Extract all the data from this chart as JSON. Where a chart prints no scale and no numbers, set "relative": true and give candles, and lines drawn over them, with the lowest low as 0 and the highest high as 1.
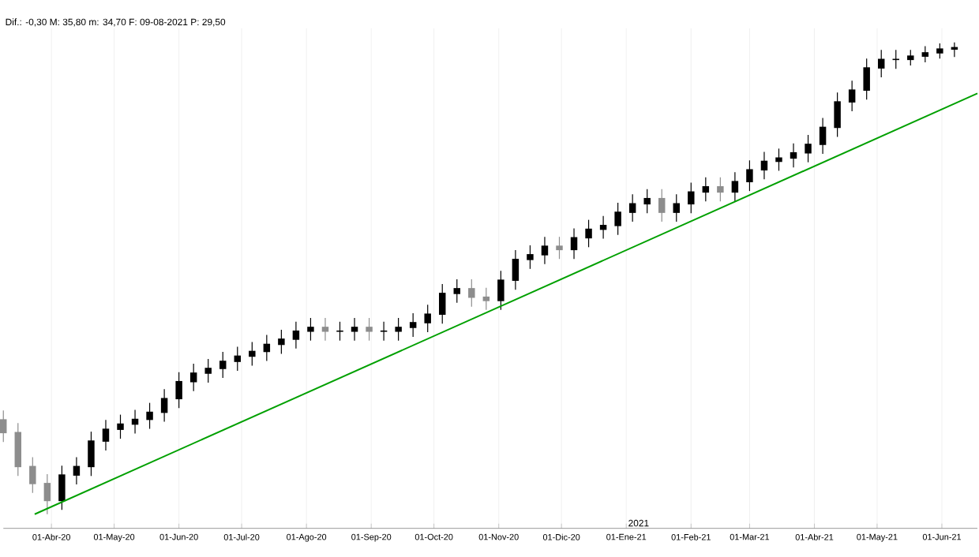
{
  "chart_data": {
    "type": "candlestick",
    "relative": true,
    "annotations": [
      "Dif.: -0,30 M: 35,80 m: 34,70 F: 09-08-2021 P: 29,50",
      "2021"
    ],
    "xlim": [
      "2020-03-09",
      "2021-06-18"
    ],
    "xticks": [
      {
        "value": "2020-04-01",
        "label": "01-Abr-20"
      },
      {
        "value": "2020-05-01",
        "label": "01-May-20"
      },
      {
        "value": "2020-06-01",
        "label": "01-Jun-20"
      },
      {
        "value": "2020-07-01",
        "label": "01-Jul-20"
      },
      {
        "value": "2020-08-01",
        "label": "01-Ago-20"
      },
      {
        "value": "2020-09-01",
        "label": "01-Sep-20"
      },
      {
        "value": "2020-10-01",
        "label": "01-Oct-20"
      },
      {
        "value": "2020-11-01",
        "label": "01-Nov-20"
      },
      {
        "value": "2020-12-01",
        "label": "01-Dic-20"
      },
      {
        "value": "2021-01-01",
        "label": "01-Ene-21"
      },
      {
        "value": "2021-02-01",
        "label": "01-Feb-21"
      },
      {
        "value": "2021-03-01",
        "label": "01-Mar-21"
      },
      {
        "value": "2021-04-01",
        "label": "01-Abr-21"
      },
      {
        "value": "2021-05-01",
        "label": "01-May-21"
      },
      {
        "value": "2021-06-01",
        "label": "01-Jun-21"
      }
    ],
    "grid": "x",
    "x": [
      "2020-03-09",
      "2020-03-16",
      "2020-03-23",
      "2020-03-30",
      "2020-04-06",
      "2020-04-13",
      "2020-04-20",
      "2020-04-27",
      "2020-05-04",
      "2020-05-11",
      "2020-05-18",
      "2020-05-25",
      "2020-06-01",
      "2020-06-08",
      "2020-06-15",
      "2020-06-22",
      "2020-06-29",
      "2020-07-06",
      "2020-07-13",
      "2020-07-20",
      "2020-07-27",
      "2020-08-03",
      "2020-08-10",
      "2020-08-17",
      "2020-08-24",
      "2020-08-31",
      "2020-09-07",
      "2020-09-14",
      "2020-09-21",
      "2020-09-28",
      "2020-10-05",
      "2020-10-12",
      "2020-10-19",
      "2020-10-26",
      "2020-11-02",
      "2020-11-09",
      "2020-11-16",
      "2020-11-23",
      "2020-11-30",
      "2020-12-07",
      "2020-12-14",
      "2020-12-21",
      "2020-12-28",
      "2021-01-04",
      "2021-01-11",
      "2021-01-18",
      "2021-01-25",
      "2021-02-01",
      "2021-02-08",
      "2021-02-15",
      "2021-02-22",
      "2021-03-01",
      "2021-03-08",
      "2021-03-15",
      "2021-03-22",
      "2021-03-29",
      "2021-04-05",
      "2021-04-12",
      "2021-04-19",
      "2021-04-26",
      "2021-05-03",
      "2021-05-10",
      "2021-05-17",
      "2021-05-24",
      "2021-05-31",
      "2021-06-07"
    ],
    "ohlc": [
      [
        0.2,
        0.22,
        0.153,
        0.173
      ],
      [
        0.173,
        0.193,
        0.081,
        0.101
      ],
      [
        0.101,
        0.121,
        0.045,
        0.065
      ],
      [
        0.065,
        0.085,
        0,
        0.029
      ],
      [
        0.029,
        0.103,
        0.009,
        0.083
      ],
      [
        0.083,
        0.121,
        0.063,
        0.101
      ],
      [
        0.101,
        0.175,
        0.081,
        0.155
      ],
      [
        0.155,
        0.2,
        0.135,
        0.18
      ],
      [
        0.18,
        0.211,
        0.16,
        0.191
      ],
      [
        0.191,
        0.221,
        0.171,
        0.201
      ],
      [
        0.201,
        0.236,
        0.181,
        0.216
      ],
      [
        0.216,
        0.265,
        0.196,
        0.245
      ],
      [
        0.245,
        0.301,
        0.225,
        0.281
      ],
      [
        0.281,
        0.319,
        0.261,
        0.299
      ],
      [
        0.299,
        0.329,
        0.279,
        0.309
      ],
      [
        0.309,
        0.344,
        0.289,
        0.324
      ],
      [
        0.324,
        0.355,
        0.304,
        0.335
      ],
      [
        0.335,
        0.365,
        0.315,
        0.345
      ],
      [
        0.345,
        0.38,
        0.325,
        0.36
      ],
      [
        0.36,
        0.391,
        0.34,
        0.371
      ],
      [
        0.371,
        0.408,
        0.351,
        0.388
      ],
      [
        0.388,
        0.416,
        0.368,
        0.396
      ],
      [
        0.396,
        0.416,
        0.368,
        0.388
      ],
      [
        0.388,
        0.408,
        0.368,
        0.388
      ],
      [
        0.388,
        0.416,
        0.368,
        0.396
      ],
      [
        0.396,
        0.416,
        0.368,
        0.388
      ],
      [
        0.388,
        0.408,
        0.368,
        0.388
      ],
      [
        0.388,
        0.416,
        0.368,
        0.396
      ],
      [
        0.396,
        0.426,
        0.376,
        0.406
      ],
      [
        0.406,
        0.444,
        0.386,
        0.424
      ],
      [
        0.424,
        0.488,
        0.404,
        0.468
      ],
      [
        0.468,
        0.498,
        0.448,
        0.478
      ],
      [
        0.478,
        0.498,
        0.44,
        0.46
      ],
      [
        0.46,
        0.48,
        0.433,
        0.453
      ],
      [
        0.453,
        0.516,
        0.433,
        0.496
      ],
      [
        0.496,
        0.56,
        0.476,
        0.54
      ],
      [
        0.54,
        0.57,
        0.52,
        0.55
      ],
      [
        0.55,
        0.588,
        0.53,
        0.568
      ],
      [
        0.568,
        0.588,
        0.541,
        0.561
      ],
      [
        0.561,
        0.606,
        0.541,
        0.586
      ],
      [
        0.586,
        0.624,
        0.566,
        0.604
      ],
      [
        0.604,
        0.632,
        0.584,
        0.612
      ],
      [
        0.612,
        0.66,
        0.592,
        0.64
      ],
      [
        0.64,
        0.678,
        0.62,
        0.658
      ],
      [
        0.658,
        0.689,
        0.638,
        0.669
      ],
      [
        0.669,
        0.689,
        0.62,
        0.64
      ],
      [
        0.64,
        0.678,
        0.62,
        0.658
      ],
      [
        0.658,
        0.703,
        0.638,
        0.683
      ],
      [
        0.683,
        0.714,
        0.663,
        0.694
      ],
      [
        0.694,
        0.714,
        0.663,
        0.683
      ],
      [
        0.683,
        0.725,
        0.663,
        0.705
      ],
      [
        0.705,
        0.75,
        0.685,
        0.73
      ],
      [
        0.73,
        0.768,
        0.71,
        0.748
      ],
      [
        0.748,
        0.775,
        0.728,
        0.755
      ],
      [
        0.755,
        0.786,
        0.735,
        0.766
      ],
      [
        0.766,
        0.804,
        0.746,
        0.784
      ],
      [
        0.784,
        0.84,
        0.764,
        0.82
      ],
      [
        0.82,
        0.894,
        0.8,
        0.874
      ],
      [
        0.874,
        0.919,
        0.854,
        0.899
      ],
      [
        0.899,
        0.966,
        0.879,
        0.946
      ],
      [
        0.946,
        0.984,
        0.926,
        0.964
      ],
      [
        0.964,
        0.984,
        0.944,
        0.964
      ],
      [
        0.964,
        0.984,
        0.951,
        0.971
      ],
      [
        0.971,
        0.992,
        0.958,
        0.978
      ],
      [
        0.978,
        0.998,
        0.966,
        0.986
      ],
      [
        0.986,
        1,
        0.969,
        0.989
      ]
    ],
    "colors": [
      "#8d8d8d",
      "#8d8d8d",
      "#8d8d8d",
      "#8d8d8d",
      "#000000",
      "#000000",
      "#000000",
      "#000000",
      "#000000",
      "#000000",
      "#000000",
      "#000000",
      "#000000",
      "#000000",
      "#000000",
      "#000000",
      "#000000",
      "#000000",
      "#000000",
      "#000000",
      "#000000",
      "#000000",
      "#8d8d8d",
      "#000000",
      "#000000",
      "#8d8d8d",
      "#000000",
      "#000000",
      "#000000",
      "#000000",
      "#000000",
      "#000000",
      "#8d8d8d",
      "#8d8d8d",
      "#000000",
      "#000000",
      "#000000",
      "#000000",
      "#8d8d8d",
      "#000000",
      "#000000",
      "#000000",
      "#000000",
      "#000000",
      "#000000",
      "#8d8d8d",
      "#000000",
      "#000000",
      "#000000",
      "#8d8d8d",
      "#000000",
      "#000000",
      "#000000",
      "#000000",
      "#000000",
      "#000000",
      "#000000",
      "#000000",
      "#000000",
      "#000000",
      "#000000",
      "#000000",
      "#000000",
      "#000000",
      "#000000",
      "#000000"
    ],
    "series": [
      {
        "type": "line",
        "color": "#00a000",
        "x": [
          "2020-03-24",
          "2021-06-18"
        ],
        "values": [
          0,
          0.892
        ]
      }
    ]
  }
}
